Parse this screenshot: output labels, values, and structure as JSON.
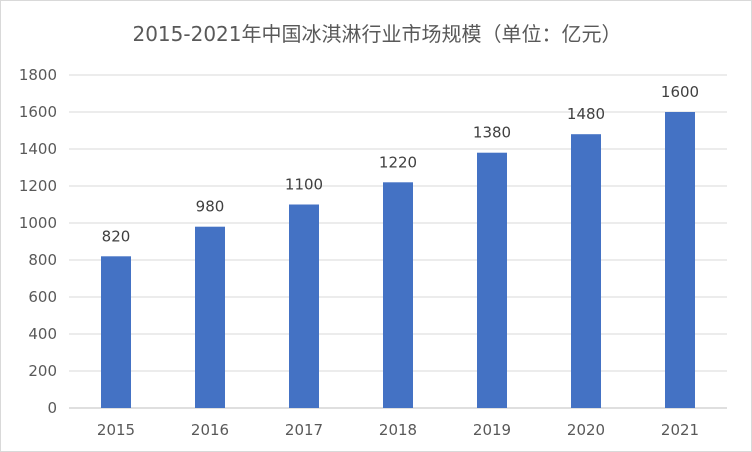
{
  "chart_data": {
    "type": "bar",
    "title": "2015-2021年中国冰淇淋行业市场规模（单位：亿元）",
    "categories": [
      "2015",
      "2016",
      "2017",
      "2018",
      "2019",
      "2020",
      "2021"
    ],
    "values": [
      820,
      980,
      1100,
      1220,
      1380,
      1480,
      1600
    ],
    "ylim": [
      0,
      1800
    ],
    "yticks": [
      "0",
      "200",
      "400",
      "600",
      "800",
      "1000",
      "1200",
      "1400",
      "1600",
      "1800"
    ],
    "grid": true,
    "legend": "none",
    "bar_color": "#4472c4"
  }
}
